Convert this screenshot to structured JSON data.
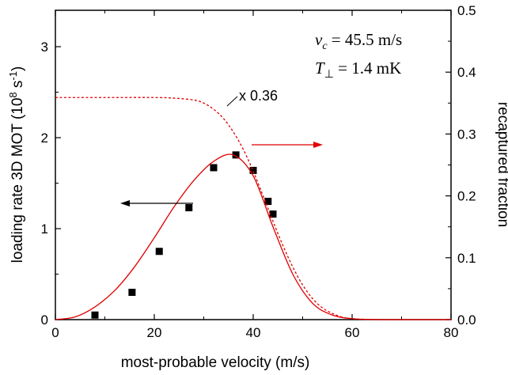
{
  "chart_data": {
    "type": "scatter",
    "x_axis": {
      "label": "most-probable velocity (m/s)",
      "range": [
        0,
        80
      ],
      "ticks": [
        0,
        20,
        40,
        60,
        80
      ],
      "tick_labels": [
        "0",
        "20",
        "40",
        "60",
        "80"
      ]
    },
    "y_left": {
      "label": "loading rate 3D MOT (10",
      "label_sup": "8",
      "label_sep": " s",
      "label_sup2": "-1",
      "label_end": ")",
      "range": [
        0,
        3.4
      ],
      "ticks": [
        0,
        1,
        2,
        3
      ],
      "tick_labels": [
        "0",
        "1",
        "2",
        "3"
      ]
    },
    "y_right": {
      "label": "recaptured fraction",
      "range": [
        0,
        0.5
      ],
      "ticks": [
        0,
        0.1,
        0.2,
        0.3,
        0.4,
        0.5
      ],
      "tick_labels": [
        "0.0",
        "0.1",
        "0.2",
        "0.3",
        "0.4",
        "0.5"
      ]
    },
    "series": [
      {
        "kind": "points",
        "axis": "left",
        "color": "#000000",
        "x": [
          8,
          15.5,
          21,
          27,
          32,
          36.5,
          40,
          43,
          44
        ],
        "y": [
          0.05,
          0.3,
          0.75,
          1.23,
          1.67,
          1.81,
          1.64,
          1.3,
          1.16
        ]
      },
      {
        "kind": "solid-fit",
        "axis": "left",
        "color": "#e00000",
        "x": [
          0,
          4,
          8,
          12,
          16,
          20,
          24,
          28,
          32,
          36,
          40,
          44,
          48,
          52,
          56,
          60,
          64,
          68,
          72,
          76,
          80
        ],
        "y": [
          0,
          0.03,
          0.14,
          0.32,
          0.58,
          0.9,
          1.24,
          1.53,
          1.74,
          1.81,
          1.58,
          1.02,
          0.5,
          0.18,
          0.05,
          0.01,
          0.002,
          0,
          0,
          0,
          0
        ]
      },
      {
        "kind": "dashed-fraction",
        "axis": "right",
        "color": "#e00000",
        "x": [
          0,
          10,
          20,
          24,
          28,
          30,
          32,
          34,
          36,
          38,
          40,
          42,
          44,
          46,
          48,
          50,
          52,
          54,
          56,
          58,
          60,
          64,
          68,
          72,
          76,
          80
        ],
        "y": [
          0.359,
          0.359,
          0.359,
          0.358,
          0.355,
          0.35,
          0.34,
          0.325,
          0.303,
          0.275,
          0.24,
          0.2,
          0.159,
          0.12,
          0.085,
          0.056,
          0.034,
          0.019,
          0.01,
          0.004,
          0.0015,
          0.0002,
          0,
          0,
          0,
          0
        ]
      }
    ],
    "annotations": {
      "scale_factor": "x 0.36",
      "vc_symbol": "v",
      "vc_subscript": "c",
      "vc_value": " = 45.5 m/s",
      "t_symbol": "T",
      "t_subscript": "⊥",
      "t_value": " = 1.4 mK"
    },
    "arrows": {
      "left_arrow_color": "#000000",
      "right_arrow_color": "#e00000"
    }
  }
}
